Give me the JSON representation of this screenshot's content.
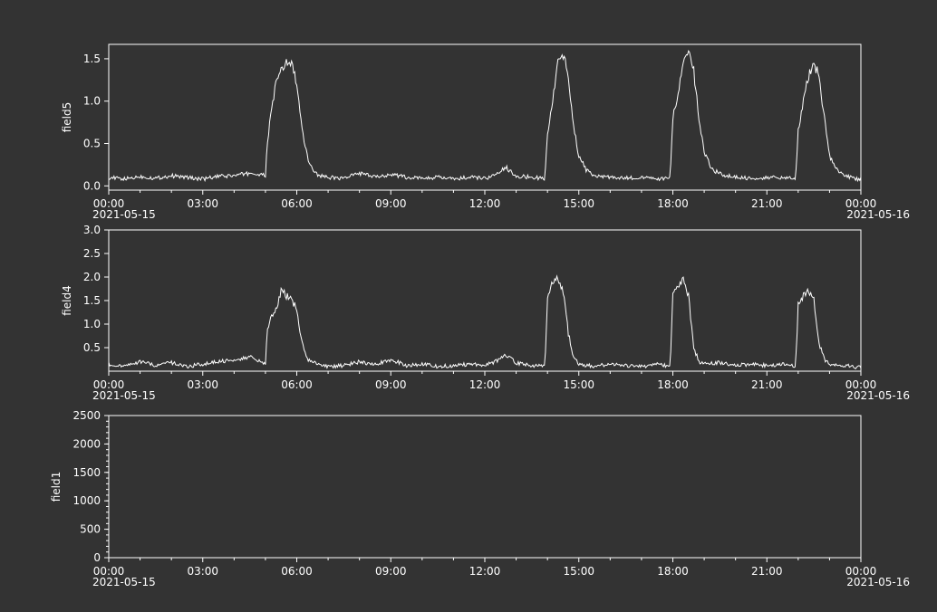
{
  "colors": {
    "background": "#333333",
    "plot_background": "#333333",
    "frame": "#ffffff",
    "line": "#ffffff",
    "text": "#ffffff"
  },
  "chart_data": [
    {
      "type": "line",
      "ylabel": "field5",
      "xlim": [
        "2021-05-15 00:00",
        "2021-05-16 00:00"
      ],
      "ylim": [
        -0.05,
        1.67
      ],
      "yticks": [
        "0.0",
        "0.5",
        "1.0",
        "1.5"
      ],
      "x_tick_labels": [
        "00:00",
        "03:00",
        "06:00",
        "09:00",
        "12:00",
        "15:00",
        "18:00",
        "21:00",
        "00:00"
      ],
      "x_date_labels": [
        "2021-05-15",
        "2021-05-16"
      ],
      "grid": false,
      "series": [
        {
          "x": [
            "00:00",
            "00:30",
            "01:00",
            "01:30",
            "02:00",
            "02:30",
            "03:00",
            "03:30",
            "04:00",
            "04:30",
            "05:00",
            "05:03",
            "05:10",
            "05:20",
            "05:30",
            "05:40",
            "05:50",
            "06:00",
            "06:10",
            "06:20",
            "06:30",
            "06:40",
            "07:00",
            "07:30",
            "08:00",
            "08:30",
            "09:00",
            "09:30",
            "10:00",
            "10:30",
            "11:00",
            "11:30",
            "12:00",
            "12:20",
            "12:40",
            "13:00",
            "13:30",
            "13:55",
            "14:00",
            "14:10",
            "14:20",
            "14:30",
            "14:40",
            "14:50",
            "15:00",
            "15:15",
            "15:30",
            "16:00",
            "16:30",
            "17:00",
            "17:30",
            "17:55",
            "18:00",
            "18:10",
            "18:20",
            "18:30",
            "18:40",
            "18:50",
            "19:00",
            "19:15",
            "19:30",
            "20:00",
            "20:30",
            "21:00",
            "21:30",
            "21:55",
            "22:00",
            "22:10",
            "22:20",
            "22:30",
            "22:40",
            "22:50",
            "23:00",
            "23:15",
            "23:30",
            "23:55"
          ],
          "y": [
            0.1,
            0.08,
            0.11,
            0.09,
            0.12,
            0.1,
            0.08,
            0.11,
            0.12,
            0.15,
            0.12,
            0.45,
            0.85,
            1.2,
            1.35,
            1.45,
            1.45,
            1.2,
            0.65,
            0.35,
            0.2,
            0.13,
            0.1,
            0.09,
            0.15,
            0.1,
            0.14,
            0.1,
            0.09,
            0.1,
            0.08,
            0.1,
            0.09,
            0.12,
            0.22,
            0.12,
            0.1,
            0.09,
            0.6,
            1.0,
            1.5,
            1.55,
            1.3,
            0.7,
            0.35,
            0.18,
            0.12,
            0.1,
            0.09,
            0.1,
            0.08,
            0.09,
            0.8,
            1.1,
            1.45,
            1.55,
            1.35,
            0.8,
            0.4,
            0.2,
            0.14,
            0.1,
            0.09,
            0.1,
            0.09,
            0.1,
            0.65,
            1.0,
            1.3,
            1.45,
            1.3,
            0.8,
            0.35,
            0.18,
            0.12,
            0.08
          ]
        }
      ]
    },
    {
      "type": "line",
      "ylabel": "field4",
      "xlim": [
        "2021-05-15 00:00",
        "2021-05-16 00:00"
      ],
      "ylim": [
        0,
        3.0
      ],
      "yticks": [
        "0.5",
        "1.0",
        "1.5",
        "2.0",
        "2.5",
        "3.0"
      ],
      "x_tick_labels": [
        "00:00",
        "03:00",
        "06:00",
        "09:00",
        "12:00",
        "15:00",
        "18:00",
        "21:00",
        "00:00"
      ],
      "x_date_labels": [
        "2021-05-15",
        "2021-05-16"
      ],
      "grid": false,
      "series": [
        {
          "x": [
            "00:00",
            "00:30",
            "01:00",
            "01:30",
            "02:00",
            "02:30",
            "03:00",
            "03:30",
            "04:00",
            "04:30",
            "05:00",
            "05:03",
            "05:10",
            "05:20",
            "05:30",
            "05:40",
            "05:50",
            "06:00",
            "06:10",
            "06:20",
            "06:40",
            "07:00",
            "07:30",
            "08:00",
            "08:30",
            "09:00",
            "09:30",
            "10:00",
            "10:30",
            "11:00",
            "11:30",
            "12:00",
            "12:20",
            "12:40",
            "13:00",
            "13:30",
            "13:55",
            "14:00",
            "14:10",
            "14:20",
            "14:30",
            "14:40",
            "14:50",
            "15:00",
            "15:30",
            "16:00",
            "16:30",
            "17:00",
            "17:30",
            "17:55",
            "18:00",
            "18:10",
            "18:20",
            "18:30",
            "18:40",
            "18:50",
            "19:00",
            "19:30",
            "20:00",
            "20:30",
            "21:00",
            "21:30",
            "21:55",
            "22:00",
            "22:10",
            "22:20",
            "22:30",
            "22:40",
            "22:50",
            "23:00",
            "23:30",
            "23:55"
          ],
          "y": [
            0.15,
            0.1,
            0.2,
            0.12,
            0.18,
            0.1,
            0.15,
            0.2,
            0.25,
            0.3,
            0.15,
            0.8,
            1.2,
            1.3,
            1.7,
            1.6,
            1.55,
            1.3,
            0.6,
            0.25,
            0.15,
            0.1,
            0.12,
            0.2,
            0.15,
            0.25,
            0.12,
            0.15,
            0.1,
            0.12,
            0.15,
            0.12,
            0.2,
            0.35,
            0.18,
            0.12,
            0.1,
            1.6,
            1.9,
            2.0,
            1.7,
            0.8,
            0.3,
            0.15,
            0.1,
            0.15,
            0.12,
            0.1,
            0.15,
            0.1,
            1.7,
            1.8,
            2.0,
            1.6,
            0.5,
            0.2,
            0.15,
            0.18,
            0.12,
            0.15,
            0.12,
            0.15,
            0.1,
            1.4,
            1.6,
            1.7,
            1.5,
            0.6,
            0.25,
            0.15,
            0.12,
            0.08
          ]
        }
      ]
    },
    {
      "type": "line",
      "ylabel": "field1",
      "xlim": [
        "2021-05-15 00:00",
        "2021-05-16 00:00"
      ],
      "ylim": [
        0,
        2500
      ],
      "yticks": [
        "0",
        "500",
        "1000",
        "1500",
        "2000",
        "2500"
      ],
      "x_tick_labels": [
        "00:00",
        "03:00",
        "06:00",
        "09:00",
        "12:00",
        "15:00",
        "18:00",
        "21:00",
        "00:00"
      ],
      "x_date_labels": [
        "2021-05-15",
        "2021-05-16"
      ],
      "grid": false,
      "series": []
    }
  ]
}
